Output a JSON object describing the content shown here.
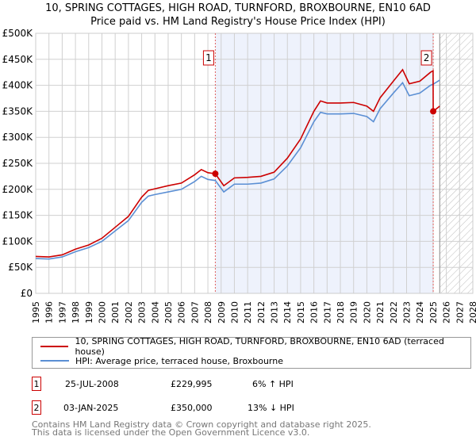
{
  "title": "10, SPRING COTTAGES, HIGH ROAD, TURNFORD, BROXBOURNE, EN10 6AD",
  "subtitle": "Price paid vs. HM Land Registry's House Price Index (HPI)",
  "chart_data": {
    "type": "line",
    "ylim": [
      0,
      500000
    ],
    "xlim": [
      1995,
      2028
    ],
    "y_ticks": [
      {
        "v": 0,
        "label": "£0"
      },
      {
        "v": 50000,
        "label": "£50K"
      },
      {
        "v": 100000,
        "label": "£100K"
      },
      {
        "v": 150000,
        "label": "£150K"
      },
      {
        "v": 200000,
        "label": "£200K"
      },
      {
        "v": 250000,
        "label": "£250K"
      },
      {
        "v": 300000,
        "label": "£300K"
      },
      {
        "v": 350000,
        "label": "£350K"
      },
      {
        "v": 400000,
        "label": "£400K"
      },
      {
        "v": 450000,
        "label": "£450K"
      },
      {
        "v": 500000,
        "label": "£500K"
      }
    ],
    "x_ticks": [
      "1995",
      "1996",
      "1997",
      "1998",
      "1999",
      "2000",
      "2001",
      "2002",
      "2003",
      "2004",
      "2005",
      "2006",
      "2007",
      "2008",
      "2009",
      "2010",
      "2011",
      "2012",
      "2013",
      "2014",
      "2015",
      "2016",
      "2017",
      "2018",
      "2019",
      "2020",
      "2021",
      "2022",
      "2023",
      "2024",
      "2025",
      "2026",
      "2027",
      "2028"
    ],
    "series": [
      {
        "name": "10, SPRING COTTAGES, HIGH ROAD, TURNFORD, BROXBOURNE, EN10 6AD (terraced house)",
        "color": "#cc0000",
        "x": [
          1995,
          1996,
          1997,
          1998,
          1999,
          2000,
          2001,
          2002,
          2003,
          2003.5,
          2004,
          2005,
          2006,
          2007,
          2007.5,
          2008,
          2008.56,
          2009.2,
          2010,
          2011,
          2012,
          2013,
          2014,
          2015,
          2016,
          2016.5,
          2017,
          2018,
          2019,
          2020,
          2020.5,
          2021,
          2022,
          2022.7,
          2023.2,
          2024,
          2024.8,
          2025.0,
          2025.01,
          2025.5
        ],
        "y": [
          71000,
          70000,
          74000,
          85000,
          93000,
          106000,
          127000,
          148000,
          185000,
          198000,
          201000,
          207000,
          212000,
          228000,
          238000,
          232000,
          229995,
          207000,
          222000,
          223000,
          225000,
          233000,
          260000,
          297000,
          350000,
          370000,
          366000,
          366000,
          367000,
          360000,
          350000,
          376000,
          408000,
          430000,
          403000,
          408000,
          425000,
          428000,
          350000,
          360000
        ]
      },
      {
        "name": "HPI: Average price, terraced house, Broxbourne",
        "color": "#5b8fd4",
        "x": [
          1995,
          1996,
          1997,
          1998,
          1999,
          2000,
          2001,
          2002,
          2003,
          2003.5,
          2004,
          2005,
          2006,
          2007,
          2007.5,
          2008,
          2008.56,
          2009.2,
          2010,
          2011,
          2012,
          2013,
          2014,
          2015,
          2016,
          2016.5,
          2017,
          2018,
          2019,
          2020,
          2020.5,
          2021,
          2022,
          2022.7,
          2023.2,
          2024,
          2024.8,
          2025.0,
          2025.5
        ],
        "y": [
          67000,
          66000,
          70000,
          80000,
          88000,
          100000,
          120000,
          140000,
          175000,
          187000,
          190000,
          195000,
          200000,
          215000,
          225000,
          219000,
          217000,
          195000,
          210000,
          210000,
          212000,
          220000,
          245000,
          280000,
          330000,
          348000,
          345000,
          345000,
          346000,
          340000,
          330000,
          355000,
          385000,
          405000,
          380000,
          385000,
          400000,
          402000,
          410000
        ]
      }
    ],
    "annotations": [
      {
        "label": "1",
        "x": 2008.56,
        "y": 229995
      },
      {
        "label": "2",
        "x": 2025.01,
        "y": 350000
      }
    ],
    "shaded_range": [
      2008.56,
      2025.01
    ],
    "hatched_from": 2025.5,
    "grid": true,
    "legend_placement": "below"
  },
  "legend": {
    "items": [
      "10, SPRING COTTAGES, HIGH ROAD, TURNFORD, BROXBOURNE, EN10 6AD (terraced house)",
      "HPI: Average price, terraced house, Broxbourne"
    ]
  },
  "sales": [
    {
      "num": "1",
      "date": "25-JUL-2008",
      "price": "£229,995",
      "hpi": "6% ↑ HPI"
    },
    {
      "num": "2",
      "date": "03-JAN-2025",
      "price": "£350,000",
      "hpi": "13% ↓ HPI"
    }
  ],
  "footer": {
    "line1": "Contains HM Land Registry data © Crown copyright and database right 2025.",
    "line2": "This data is licensed under the Open Government Licence v3.0."
  }
}
